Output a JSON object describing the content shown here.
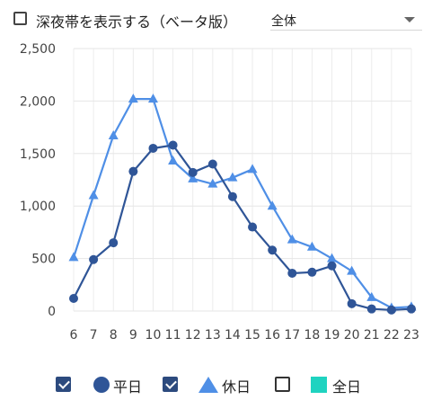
{
  "controls": {
    "late_night_label": "深夜帯を表示する（ベータ版）",
    "late_night_checked": false,
    "view_select_value": "全体"
  },
  "legend": {
    "items": [
      {
        "label": "平日",
        "checked": true,
        "color": "#2f5597",
        "marker": "circle"
      },
      {
        "label": "休日",
        "checked": true,
        "color": "#4f8fe6",
        "marker": "triangle"
      },
      {
        "label": "全日",
        "checked": false,
        "color": "#1fd3c0",
        "marker": "square"
      }
    ]
  },
  "chart_data": {
    "type": "line",
    "title": "",
    "xlabel": "",
    "ylabel": "",
    "categories": [
      "6",
      "7",
      "8",
      "9",
      "10",
      "11",
      "12",
      "13",
      "14",
      "15",
      "16",
      "17",
      "18",
      "19",
      "20",
      "21",
      "22",
      "23"
    ],
    "ylim": [
      0,
      2500
    ],
    "yticks": [
      "0",
      "500",
      "1,000",
      "1,500",
      "2,000",
      "2,500"
    ],
    "ytick_values": [
      0,
      500,
      1000,
      1500,
      2000,
      2500
    ],
    "grid": true,
    "legend_position": "bottom",
    "series": [
      {
        "name": "平日",
        "color": "#2f5597",
        "marker": "circle",
        "values": [
          120,
          490,
          650,
          1330,
          1550,
          1580,
          1320,
          1400,
          1090,
          800,
          580,
          360,
          370,
          430,
          70,
          20,
          10,
          20
        ]
      },
      {
        "name": "休日",
        "color": "#4f8fe6",
        "marker": "triangle",
        "values": [
          510,
          1100,
          1670,
          2020,
          2020,
          1430,
          1260,
          1210,
          1270,
          1350,
          1000,
          680,
          610,
          500,
          380,
          130,
          30,
          40
        ]
      }
    ]
  }
}
